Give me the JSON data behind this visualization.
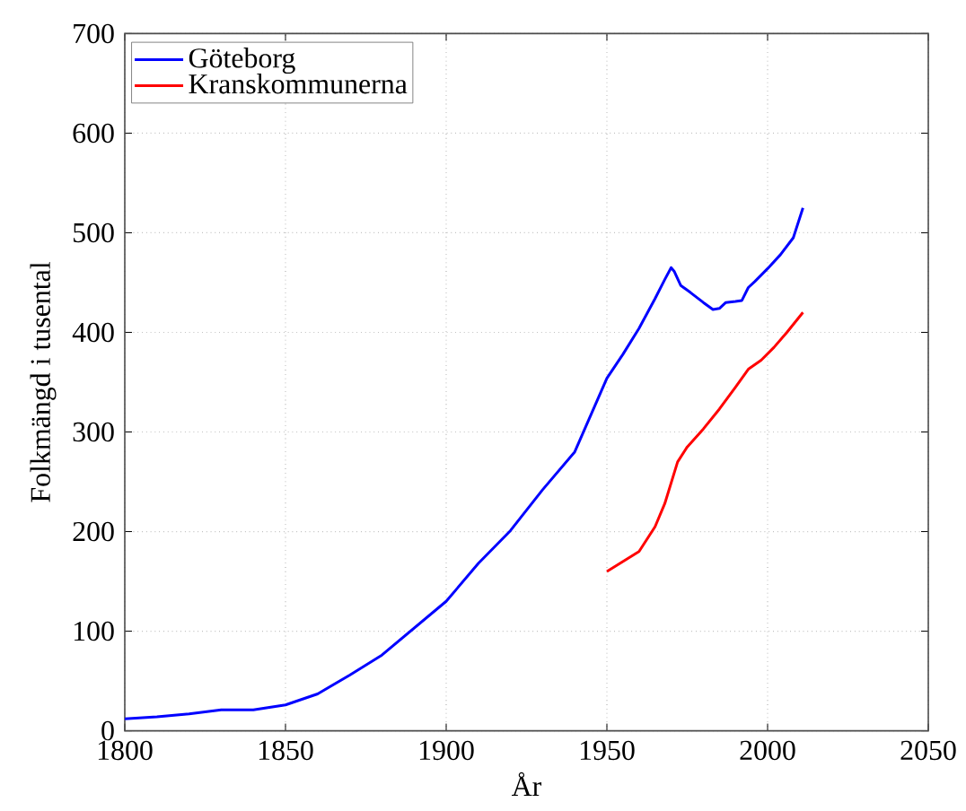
{
  "chart_data": {
    "type": "line",
    "xlabel": "År",
    "ylabel": "Folkmängd i tusental",
    "xlim": [
      1800,
      2050
    ],
    "ylim": [
      0,
      700
    ],
    "xticks": [
      1800,
      1850,
      1900,
      1950,
      2000,
      2050
    ],
    "yticks": [
      0,
      100,
      200,
      300,
      400,
      500,
      600,
      700
    ],
    "grid": true,
    "legend": "top left",
    "marker": "none",
    "line_style": "solid",
    "series": [
      {
        "name": "Göteborg",
        "color": "#0000ff",
        "x": [
          1800,
          1810,
          1820,
          1830,
          1840,
          1850,
          1860,
          1870,
          1880,
          1890,
          1900,
          1910,
          1920,
          1930,
          1940,
          1950,
          1955,
          1960,
          1965,
          1968,
          1970,
          1971,
          1973,
          1976,
          1980,
          1983,
          1985,
          1987,
          1990,
          1992,
          1994,
          1996,
          2000,
          2004,
          2008,
          2011
        ],
        "values": [
          12,
          14,
          17,
          21,
          21,
          26,
          37,
          56,
          76,
          103,
          130,
          168,
          201,
          242,
          280,
          354,
          378,
          404,
          434,
          453,
          465,
          461,
          447,
          440,
          430,
          423,
          424,
          430,
          431,
          432,
          445,
          451,
          464,
          478,
          495,
          525
        ]
      },
      {
        "name": "Kranskommunerna",
        "color": "#ff0000",
        "x": [
          1950,
          1960,
          1965,
          1968,
          1972,
          1975,
          1980,
          1985,
          1990,
          1994,
          1998,
          2002,
          2006,
          2011
        ],
        "values": [
          160,
          180,
          205,
          228,
          270,
          285,
          303,
          323,
          345,
          363,
          372,
          385,
          400,
          420
        ]
      }
    ]
  }
}
